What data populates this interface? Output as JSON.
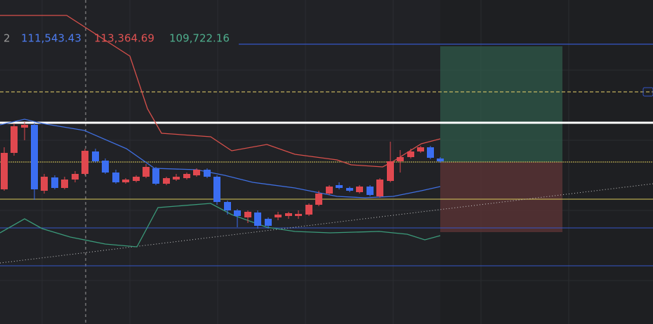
{
  "header": {
    "prefix": "2",
    "values": [
      "111,543.43",
      "113,364.69",
      "109,722.16"
    ]
  }
}
